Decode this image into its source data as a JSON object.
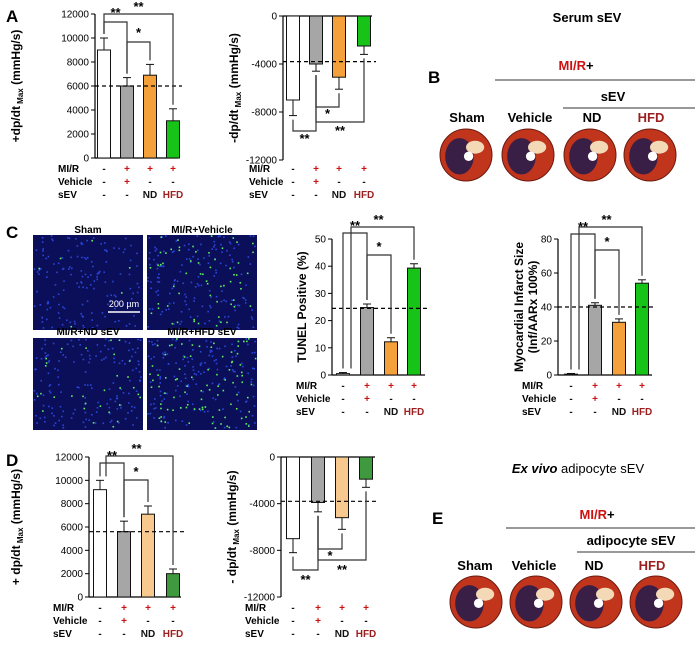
{
  "panels": {
    "A": "A",
    "B": "B",
    "C": "C",
    "D": "D",
    "E": "E"
  },
  "colors": {
    "vehicle": "#a6a6a6",
    "nd": "#f4a13b",
    "nd_light": "#f8c98e",
    "hfd": "#17c317",
    "hfd_dark": "#3f9a3f",
    "mi_red": "#cc1111",
    "hfd_label": "#9b1f1f"
  },
  "condition_rows": {
    "labels": [
      "MI/R",
      "Vehicle",
      "sEV"
    ],
    "cols": [
      [
        "-",
        "-",
        "-"
      ],
      [
        "+",
        "+",
        "-"
      ],
      [
        "+",
        "-",
        "ND"
      ],
      [
        "+",
        "-",
        "HFD"
      ]
    ]
  },
  "sig": {
    "double": "**",
    "single": "*"
  },
  "serum_header": {
    "title": "Serum sEV",
    "mir_prefix": "MI/R",
    "mir_suffix": " +",
    "sev": "sEV",
    "groups": [
      "Sham",
      "Vehicle",
      "ND",
      "HFD"
    ]
  },
  "adipo_header": {
    "title_italic": "Ex vivo",
    "title_rest": " adipocyte sEV",
    "mir_prefix": "MI/R",
    "mir_suffix": " +",
    "sev": "adipocyte sEV",
    "groups": [
      "Sham",
      "Vehicle",
      "ND",
      "HFD"
    ]
  },
  "tunel_images": {
    "labels": [
      "Sham",
      "MI/R+Vehicle",
      "MI/R+ND sEV",
      "MI/R+HFD sEV"
    ],
    "scale_bar": "200 µm"
  },
  "chart_data": [
    {
      "id": "A-left",
      "type": "bar",
      "ylabel_main": "+dp/dt",
      "ylabel_sub": "Max",
      "ylabel_unit": " (mmHg/s)",
      "ylim": [
        0,
        12000
      ],
      "yticks": [
        0,
        2000,
        4000,
        6000,
        8000,
        10000,
        12000
      ],
      "values": [
        9000,
        6000,
        6900,
        3100
      ],
      "errors": [
        1000,
        700,
        900,
        1000
      ],
      "reference_line": 6000
    },
    {
      "id": "A-right",
      "type": "bar",
      "ylabel_main": "-dp/dt",
      "ylabel_sub": "Max",
      "ylabel_unit": " (mmHg/s)",
      "ylim": [
        -12000,
        0
      ],
      "yticks": [
        0,
        -4000,
        -8000,
        -12000
      ],
      "values": [
        -7000,
        -4000,
        -5100,
        -2500
      ],
      "errors": [
        1300,
        600,
        1000,
        700
      ],
      "reference_line": -3800
    },
    {
      "id": "C-tunel",
      "type": "bar",
      "ylabel_main": "TUNEL Positive (%)",
      "ylim": [
        0,
        50
      ],
      "yticks": [
        0,
        10,
        20,
        30,
        40,
        50
      ],
      "values": [
        0.5,
        24.8,
        12.2,
        39.3
      ],
      "errors": [
        0.4,
        1.3,
        1.5,
        1.6
      ],
      "reference_line": 24.5
    },
    {
      "id": "C-infarct",
      "type": "bar",
      "ylabel_main": "Myocardial Infarct Size",
      "ylabel_line2": "(Inf/AARx 100%)",
      "ylim": [
        0,
        80
      ],
      "yticks": [
        0,
        20,
        40,
        60,
        80
      ],
      "values": [
        0.5,
        41,
        31,
        54
      ],
      "errors": [
        0.4,
        1.5,
        2,
        2
      ],
      "reference_line": 40
    },
    {
      "id": "D-left",
      "type": "bar",
      "ylabel_main": "+ dp/dt",
      "ylabel_sub": "Max",
      "ylabel_unit": " (mmHg/s)",
      "ylim": [
        0,
        12000
      ],
      "yticks": [
        0,
        2000,
        4000,
        6000,
        8000,
        10000,
        12000
      ],
      "values": [
        9200,
        5600,
        7100,
        2000
      ],
      "errors": [
        800,
        900,
        700,
        400
      ],
      "reference_line": 5600
    },
    {
      "id": "D-right",
      "type": "bar",
      "ylabel_main": "- dp/dt",
      "ylabel_sub": "Max",
      "ylabel_unit": " (mmHg/s)",
      "ylim": [
        -12000,
        0
      ],
      "yticks": [
        0,
        -4000,
        -8000,
        -12000
      ],
      "values": [
        -7000,
        -3900,
        -5200,
        -1900
      ],
      "errors": [
        1200,
        800,
        1000,
        700
      ],
      "reference_line": -3800
    }
  ]
}
